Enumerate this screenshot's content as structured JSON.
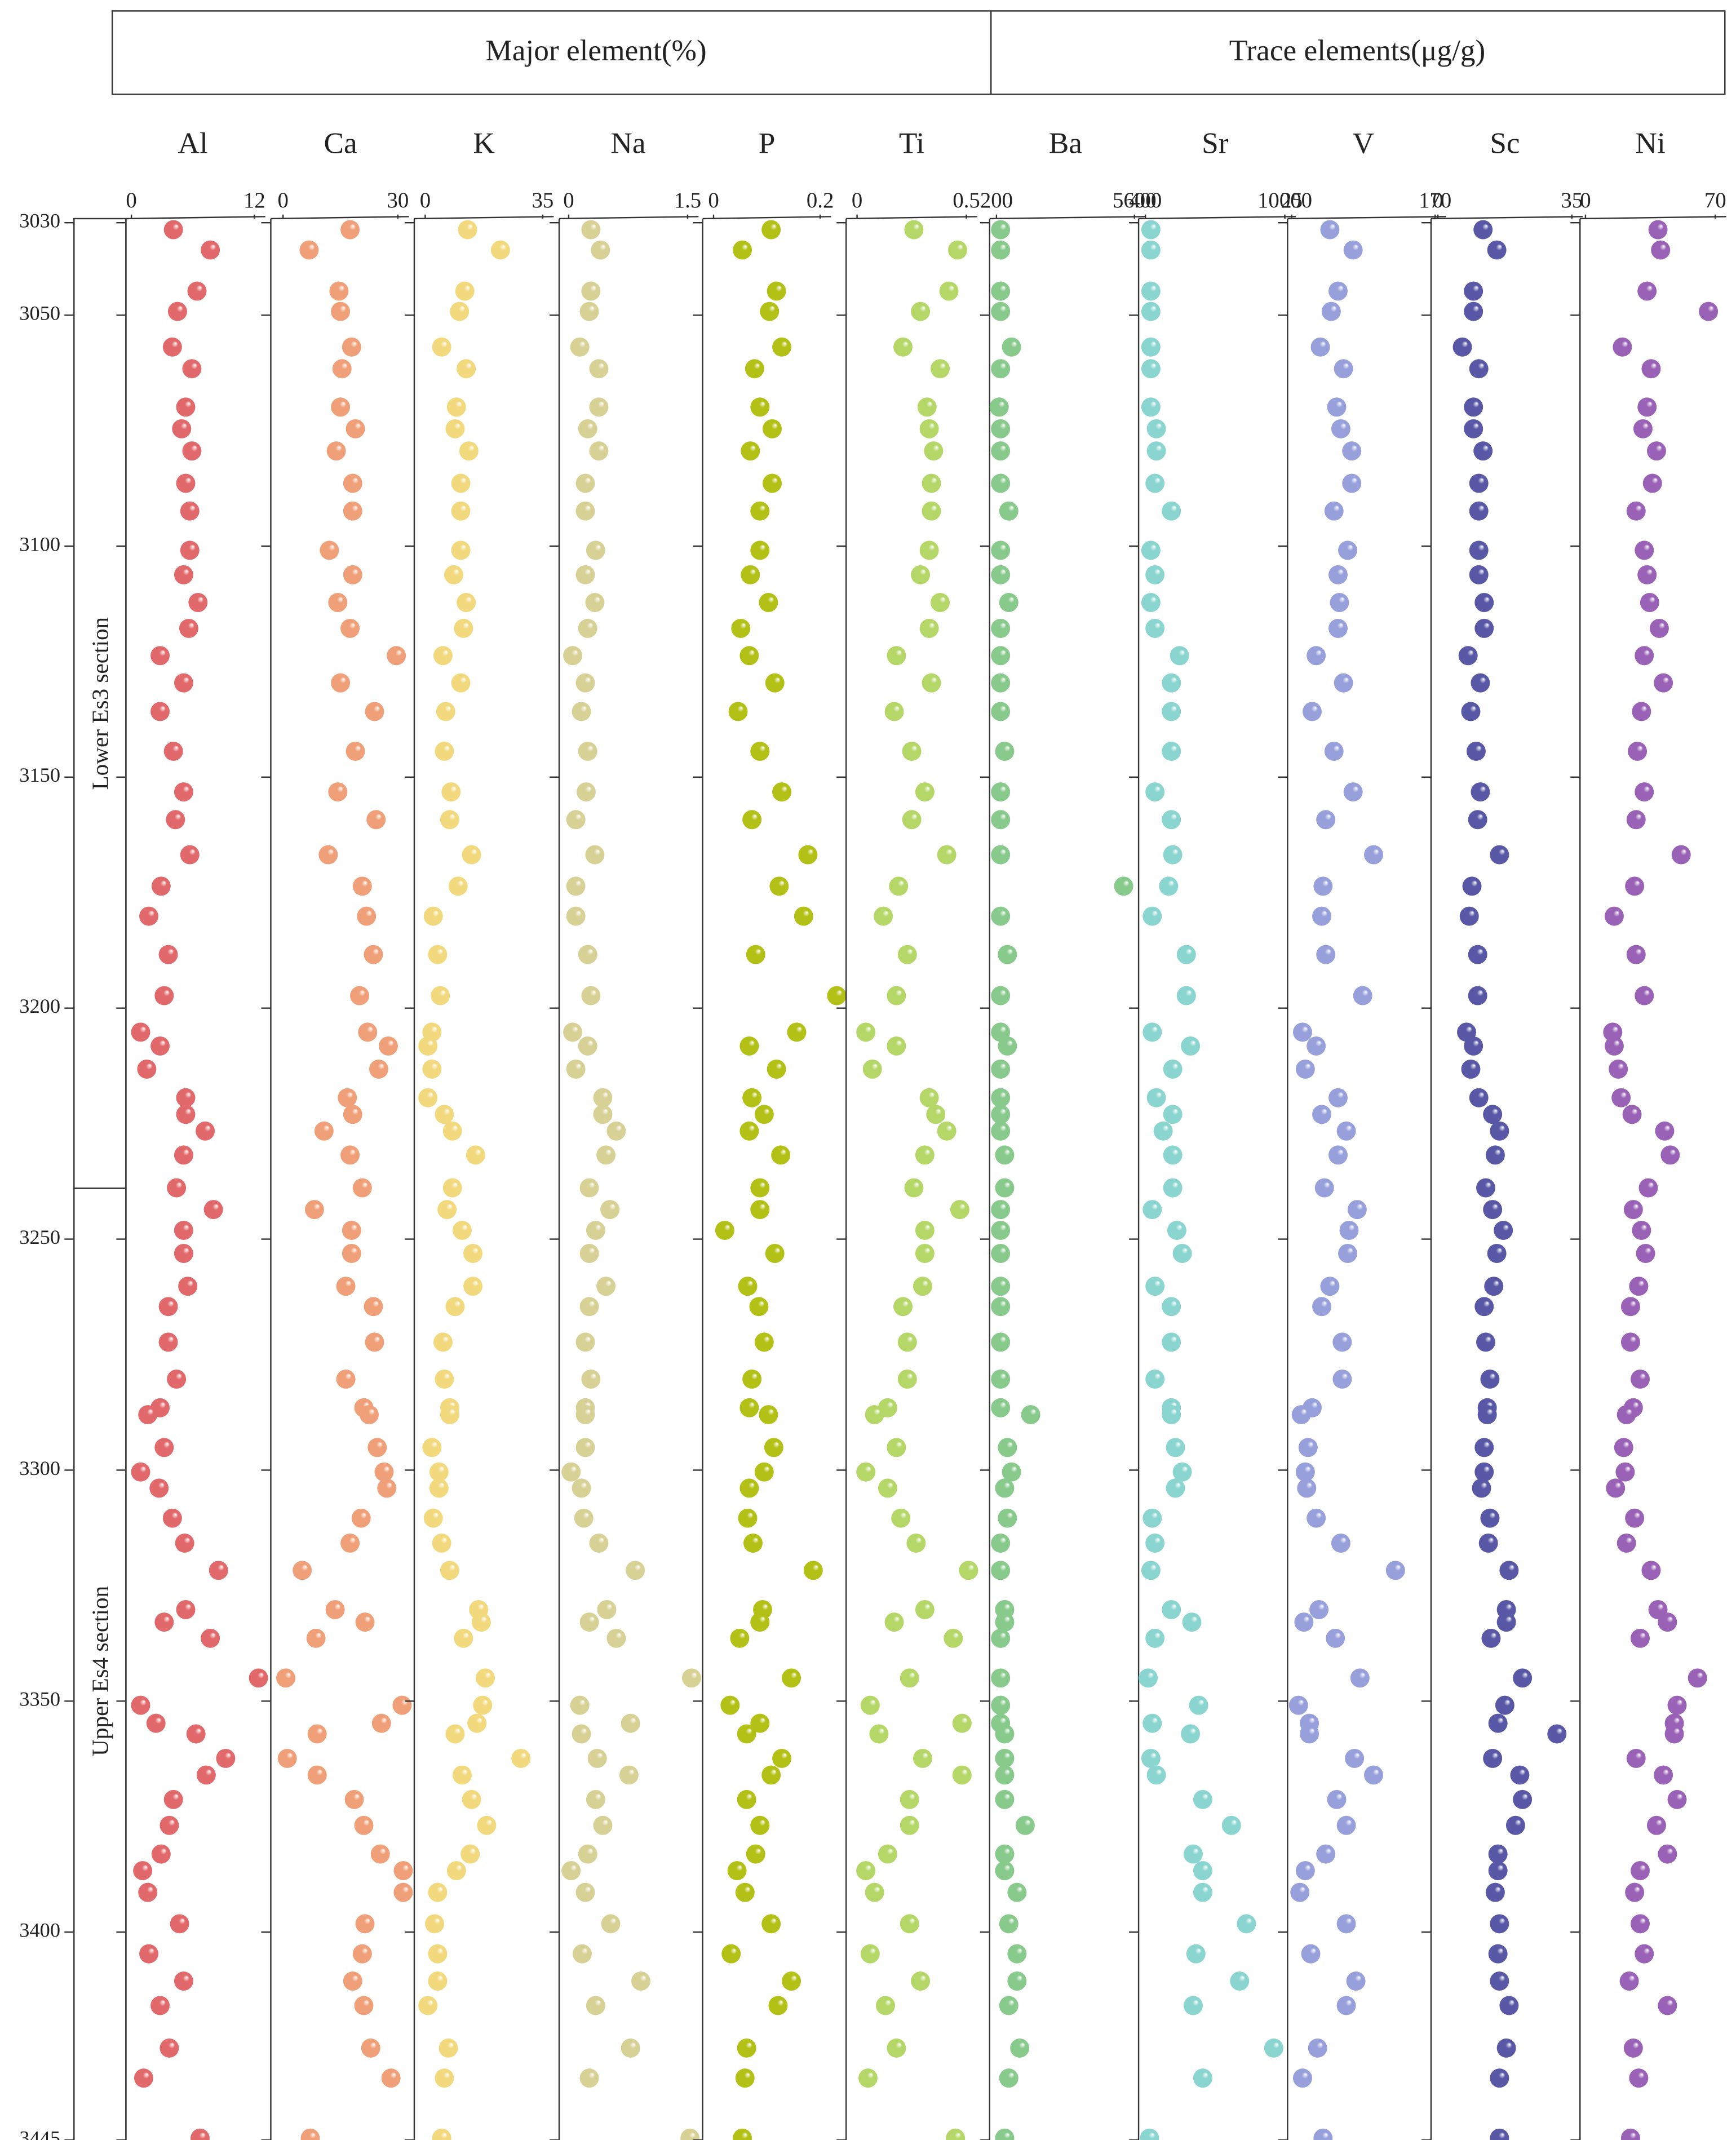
{
  "chart_data": {
    "type": "scatter",
    "groups": [
      "Major element(%)",
      "Trace elements(μg/g)"
    ],
    "sections": [
      {
        "label": "Lower Es3 section",
        "range": [
          3030,
          3239
        ]
      },
      {
        "label": "Upper Es4 section",
        "range": [
          3239,
          3445
        ]
      }
    ],
    "ylim": [
      3030,
      3445
    ],
    "yticks": [
      3030,
      3050,
      3100,
      3150,
      3200,
      3250,
      3300,
      3350,
      3400,
      3445
    ],
    "depth": [
      3031.5,
      3035.9,
      3044.8,
      3049.2,
      3056.9,
      3061.6,
      3069.9,
      3074.6,
      3079.4,
      3086.4,
      3092.4,
      3100.9,
      3106.2,
      3112.2,
      3117.8,
      3123.7,
      3129.6,
      3135.8,
      3144.4,
      3153.2,
      3159.2,
      3166.8,
      3173.6,
      3180.1,
      3188.4,
      3197.3,
      3205.2,
      3208.2,
      3213.2,
      3219.4,
      3223.0,
      3226.6,
      3231.8,
      3238.9,
      3243.6,
      3248.1,
      3253.1,
      3260.2,
      3264.6,
      3272.3,
      3280.3,
      3286.5,
      3288.0,
      3295.1,
      3300.4,
      3303.9,
      3310.4,
      3315.8,
      3321.7,
      3330.2,
      3332.9,
      3336.4,
      3345.0,
      3350.9,
      3354.8,
      3357.1,
      3362.4,
      3366.0,
      3371.3,
      3376.9,
      3383.1,
      3386.7,
      3391.4,
      3398.2,
      3404.7,
      3410.6,
      3415.9,
      3425.1,
      3431.6,
      3444.6
    ],
    "series": [
      {
        "name": "Al",
        "color": "#e2696b",
        "xlim": [
          0,
          12
        ],
        "xticks": [
          0,
          12
        ],
        "values": [
          4.1,
          7.7,
          6.4,
          4.5,
          4.0,
          5.9,
          5.3,
          4.9,
          5.9,
          5.3,
          5.7,
          5.7,
          5.1,
          6.5,
          5.6,
          2.8,
          5.1,
          2.8,
          4.1,
          5.1,
          4.3,
          5.7,
          2.9,
          1.7,
          3.6,
          3.2,
          0.9,
          2.8,
          1.5,
          5.3,
          5.3,
          7.2,
          5.1,
          4.4,
          8.0,
          5.1,
          5.1,
          5.5,
          3.6,
          3.6,
          4.4,
          2.8,
          1.6,
          3.2,
          0.9,
          2.7,
          4.0,
          5.2,
          8.5,
          5.3,
          3.2,
          7.7,
          12.4,
          0.9,
          2.4,
          6.3,
          9.2,
          7.3,
          4.1,
          3.7,
          2.9,
          1.1,
          1.6,
          4.7,
          1.7,
          5.1,
          2.8,
          3.7,
          1.2,
          6.7
        ]
      },
      {
        "name": "Ca",
        "color": "#f0a078",
        "xlim": [
          0,
          30
        ],
        "xticks": [
          0,
          30
        ],
        "values": [
          17.5,
          6.8,
          14.6,
          15.0,
          17.9,
          15.4,
          15.0,
          18.9,
          13.9,
          18.2,
          18.2,
          12.1,
          18.2,
          14.3,
          17.5,
          29.6,
          15.0,
          23.9,
          18.9,
          14.3,
          24.3,
          11.8,
          20.7,
          21.8,
          23.6,
          20.0,
          22.1,
          27.5,
          25.0,
          16.8,
          18.2,
          10.7,
          17.5,
          20.7,
          8.2,
          17.9,
          17.9,
          16.4,
          23.6,
          23.9,
          16.4,
          21.1,
          22.5,
          24.6,
          26.4,
          27.1,
          20.4,
          17.5,
          5.0,
          13.6,
          21.4,
          8.6,
          0.7,
          31.1,
          25.7,
          8.9,
          1.1,
          8.9,
          18.6,
          21.1,
          25.4,
          31.4,
          31.4,
          21.4,
          20.7,
          18.2,
          21.1,
          22.9,
          28.2,
          7.1
        ]
      },
      {
        "name": "K",
        "color": "#f2d97e",
        "xlim": [
          0,
          35
        ],
        "xticks": [
          0,
          35
        ],
        "values": [
          12.6,
          22.4,
          11.8,
          10.2,
          4.9,
          12.2,
          9.3,
          8.9,
          13.0,
          10.6,
          10.6,
          10.6,
          8.5,
          12.2,
          11.4,
          5.3,
          10.6,
          6.1,
          5.7,
          7.7,
          7.3,
          13.8,
          9.8,
          2.4,
          3.7,
          4.5,
          2.0,
          0.8,
          2.0,
          0.8,
          5.7,
          8.1,
          15.0,
          8.1,
          6.5,
          11.0,
          14.2,
          14.2,
          8.9,
          5.3,
          5.7,
          7.3,
          7.3,
          2.0,
          4.1,
          4.1,
          2.4,
          4.9,
          7.3,
          15.9,
          16.7,
          11.4,
          17.9,
          17.1,
          15.4,
          8.9,
          28.5,
          11.0,
          13.8,
          18.3,
          13.4,
          9.3,
          3.7,
          2.8,
          3.7,
          3.7,
          0.8,
          6.9,
          5.7,
          4.9
        ]
      },
      {
        "name": "Na",
        "color": "#d8d196",
        "xlim": [
          0,
          1.5
        ],
        "xticks": [
          0,
          1.5
        ],
        "values": [
          0.28,
          0.4,
          0.28,
          0.26,
          0.14,
          0.38,
          0.38,
          0.24,
          0.38,
          0.21,
          0.21,
          0.34,
          0.21,
          0.33,
          0.24,
          0.05,
          0.21,
          0.16,
          0.24,
          0.22,
          0.09,
          0.33,
          0.09,
          0.09,
          0.24,
          0.28,
          0.05,
          0.24,
          0.09,
          0.43,
          0.43,
          0.6,
          0.47,
          0.26,
          0.52,
          0.34,
          0.26,
          0.47,
          0.26,
          0.21,
          0.28,
          0.21,
          0.21,
          0.21,
          0.03,
          0.16,
          0.19,
          0.38,
          0.84,
          0.48,
          0.26,
          0.6,
          1.55,
          0.14,
          0.78,
          0.16,
          0.36,
          0.76,
          0.34,
          0.43,
          0.24,
          0.03,
          0.21,
          0.53,
          0.17,
          0.91,
          0.34,
          0.78,
          0.26,
          1.53
        ]
      },
      {
        "name": "P",
        "color": "#b3c015",
        "xlim": [
          0,
          0.2
        ],
        "xticks": [
          0,
          0.2
        ],
        "values": [
          0.108,
          0.054,
          0.118,
          0.105,
          0.128,
          0.077,
          0.087,
          0.11,
          0.069,
          0.11,
          0.087,
          0.087,
          0.069,
          0.103,
          0.051,
          0.067,
          0.115,
          0.046,
          0.087,
          0.128,
          0.072,
          0.177,
          0.123,
          0.169,
          0.079,
          0.231,
          0.156,
          0.067,
          0.118,
          0.072,
          0.095,
          0.067,
          0.126,
          0.087,
          0.087,
          0.021,
          0.115,
          0.064,
          0.085,
          0.095,
          0.072,
          0.067,
          0.103,
          0.113,
          0.095,
          0.067,
          0.064,
          0.074,
          0.187,
          0.092,
          0.087,
          0.049,
          0.146,
          0.031,
          0.087,
          0.062,
          0.128,
          0.108,
          0.062,
          0.087,
          0.079,
          0.044,
          0.059,
          0.108,
          0.033,
          0.146,
          0.121,
          0.062,
          0.059,
          0.054
        ]
      },
      {
        "name": "Ti",
        "color": "#b4d768",
        "xlim": [
          0,
          0.5
        ],
        "xticks": [
          0,
          0.5
        ],
        "values": [
          0.26,
          0.46,
          0.42,
          0.29,
          0.21,
          0.38,
          0.32,
          0.33,
          0.35,
          0.34,
          0.34,
          0.33,
          0.29,
          0.38,
          0.33,
          0.18,
          0.34,
          0.17,
          0.25,
          0.31,
          0.25,
          0.41,
          0.19,
          0.12,
          0.23,
          0.18,
          0.04,
          0.18,
          0.07,
          0.33,
          0.36,
          0.41,
          0.31,
          0.26,
          0.47,
          0.31,
          0.31,
          0.3,
          0.21,
          0.23,
          0.23,
          0.14,
          0.08,
          0.18,
          0.04,
          0.14,
          0.2,
          0.27,
          0.51,
          0.31,
          0.17,
          0.44,
          0.24,
          0.06,
          0.48,
          0.1,
          0.3,
          0.48,
          0.24,
          0.24,
          0.14,
          0.04,
          0.08,
          0.24,
          0.06,
          0.29,
          0.13,
          0.18,
          0.05,
          0.45
        ]
      },
      {
        "name": "Ba",
        "color": "#88c98c",
        "xlim": [
          200,
          5600
        ],
        "xticks": [
          200,
          5600
        ],
        "values": [
          360,
          360,
          360,
          360,
          789,
          360,
          307,
          360,
          360,
          360,
          682,
          360,
          360,
          682,
          360,
          360,
          360,
          360,
          521,
          360,
          360,
          360,
          5176,
          360,
          628,
          360,
          360,
          628,
          360,
          360,
          360,
          360,
          521,
          521,
          360,
          360,
          360,
          360,
          360,
          360,
          360,
          360,
          1538,
          628,
          789,
          521,
          628,
          360,
          360,
          521,
          521,
          360,
          360,
          360,
          360,
          521,
          521,
          521,
          521,
          1324,
          521,
          521,
          1003,
          682,
          1003,
          1003,
          682,
          1110,
          682,
          521
        ]
      },
      {
        "name": "Sr",
        "color": "#8ad5d0",
        "xlim": [
          400,
          10000
        ],
        "xticks": [
          400,
          10000
        ],
        "values": [
          776,
          776,
          776,
          776,
          776,
          776,
          776,
          1152,
          1152,
          1058,
          2186,
          776,
          1058,
          776,
          1058,
          2750,
          2186,
          2186,
          2186,
          1058,
          2186,
          2280,
          1998,
          870,
          3220,
          3220,
          870,
          3502,
          2280,
          1152,
          2280,
          1622,
          2280,
          2280,
          870,
          2562,
          2938,
          1058,
          2186,
          2186,
          1058,
          2186,
          2186,
          2468,
          2938,
          2468,
          870,
          1058,
          776,
          2186,
          3596,
          1058,
          588,
          4066,
          870,
          3502,
          776,
          1152,
          4348,
          6322,
          3690,
          4348,
          4348,
          7356,
          3878,
          6886,
          3690,
          9236,
          4348,
          682
        ]
      },
      {
        "name": "V",
        "color": "#97a0db",
        "xlim": [
          25,
          170
        ],
        "xticks": [
          25,
          170
        ],
        "values": [
          63.6,
          87.1,
          71.9,
          65.0,
          54.0,
          77.4,
          70.5,
          74.7,
          85.7,
          85.7,
          67.8,
          81.6,
          71.9,
          73.3,
          71.9,
          49.8,
          77.4,
          45.7,
          67.8,
          87.1,
          59.5,
          107.8,
          56.7,
          55.4,
          59.5,
          96.8,
          36.0,
          49.8,
          38.8,
          71.9,
          55.4,
          80.2,
          71.9,
          58.1,
          91.2,
          83.0,
          81.6,
          63.6,
          55.4,
          76.1,
          76.1,
          45.7,
          34.7,
          41.6,
          38.8,
          40.2,
          49.8,
          74.7,
          129.9,
          52.6,
          37.4,
          69.2,
          94.0,
          31.9,
          42.9,
          42.9,
          88.5,
          107.8,
          70.5,
          80.2,
          59.5,
          38.8,
          33.3,
          80.2,
          44.3,
          89.9,
          80.2,
          51.2,
          36.0,
          56.7
        ]
      },
      {
        "name": "Sc",
        "color": "#5858a6",
        "xlim": [
          0,
          35
        ],
        "xticks": [
          0,
          35
        ],
        "values": [
          11.8,
          15.4,
          9.3,
          9.3,
          6.4,
          10.7,
          9.3,
          9.3,
          11.8,
          10.7,
          10.7,
          10.7,
          10.7,
          12.1,
          12.1,
          7.9,
          11.1,
          8.6,
          10.0,
          11.1,
          10.4,
          16.1,
          8.9,
          8.2,
          10.4,
          10.4,
          7.5,
          9.3,
          8.6,
          10.7,
          14.3,
          16.1,
          15.0,
          12.5,
          14.3,
          17.1,
          15.4,
          14.6,
          12.1,
          12.5,
          13.6,
          12.9,
          12.9,
          12.1,
          12.1,
          11.4,
          13.6,
          13.2,
          18.6,
          17.9,
          17.9,
          13.9,
          22.1,
          17.5,
          15.7,
          31.1,
          14.3,
          21.4,
          22.1,
          20.3,
          15.7,
          15.7,
          15.0,
          16.1,
          15.7,
          16.1,
          18.6,
          17.9,
          16.1,
          16.1
        ]
      },
      {
        "name": "Ni",
        "color": "#9a62b6",
        "xlim": [
          0,
          70
        ],
        "xticks": [
          0,
          70
        ],
        "values": [
          39.1,
          40.5,
          33.2,
          66.3,
          19.9,
          35.4,
          33.2,
          31.0,
          38.3,
          36.1,
          27.3,
          31.7,
          33.2,
          34.6,
          39.8,
          31.7,
          42.0,
          30.2,
          28.0,
          31.7,
          27.3,
          51.6,
          26.5,
          15.5,
          27.3,
          31.7,
          14.7,
          15.5,
          17.7,
          19.2,
          25.1,
          42.7,
          45.7,
          33.9,
          25.8,
          30.2,
          32.4,
          28.7,
          24.3,
          24.3,
          29.5,
          25.8,
          22.1,
          20.6,
          21.4,
          16.2,
          26.5,
          22.1,
          35.4,
          39.1,
          44.2,
          29.5,
          60.4,
          49.4,
          47.9,
          47.9,
          27.3,
          42.0,
          49.4,
          38.3,
          44.2,
          29.5,
          26.5,
          29.5,
          31.7,
          23.6,
          44.2,
          25.8,
          28.7,
          24.3
        ]
      }
    ]
  }
}
